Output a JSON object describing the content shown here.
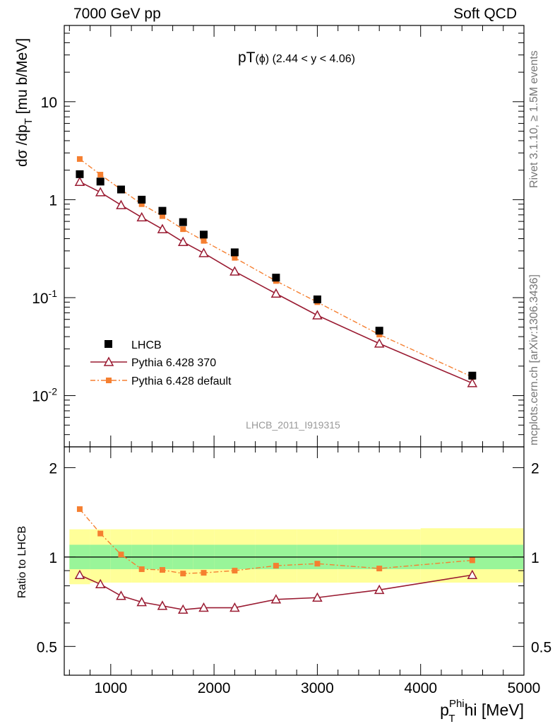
{
  "header": {
    "left": "7000 GeV pp",
    "right": "Soft QCD"
  },
  "side_labels": {
    "rivet": "Rivet 3.1.10, ≥ 1.5M events",
    "mcplots": "mcplots.cern.ch [arXiv:1306.3436]"
  },
  "chart_data": [
    {
      "type": "scatter",
      "panel": "main",
      "title_main": "pT",
      "title_particle": "(ϕ)",
      "title_range": "(2.44 < y < 4.06)",
      "watermark": "LHCB_2011_I919315",
      "ylabel": "dσ /dp_T [mu b/MeV]",
      "yscale": "log",
      "xlim": [
        550,
        5000
      ],
      "ylim": [
        0.003,
        60
      ],
      "y_tick_labels": [
        "10^-2",
        "10^-1",
        "1",
        "10"
      ],
      "legend_placement": "bottom-left",
      "x": [
        700,
        900,
        1100,
        1300,
        1500,
        1700,
        1900,
        2200,
        2600,
        3000,
        3600,
        4500
      ],
      "series": [
        {
          "name": "LHCB",
          "color": "#000000",
          "marker": "square",
          "values": [
            1.82,
            1.53,
            1.27,
            1.0,
            0.77,
            0.59,
            0.44,
            0.29,
            0.16,
            0.096,
            0.046,
            0.016
          ]
        },
        {
          "name": "Pythia 6.428 370",
          "color": "#9a1b32",
          "marker": "open-triangle",
          "line": "solid",
          "values": [
            1.52,
            1.19,
            0.88,
            0.66,
            0.5,
            0.37,
            0.285,
            0.185,
            0.11,
            0.066,
            0.034,
            0.0134
          ]
        },
        {
          "name": "Pythia 6.428 default",
          "color": "#f57f30",
          "marker": "square",
          "line": "dash-dot",
          "values": [
            2.6,
            1.8,
            1.27,
            0.9,
            0.68,
            0.5,
            0.38,
            0.255,
            0.148,
            0.09,
            0.042,
            0.0155
          ]
        }
      ]
    },
    {
      "type": "line",
      "panel": "ratio",
      "ylabel": "Ratio to LHCB",
      "xlabel_main": "p",
      "xlabel_sub": "T",
      "xlabel_sup": "Phi",
      "xlabel_unit": "hi [MeV]",
      "yscale": "log",
      "xlim": [
        550,
        5000
      ],
      "ylim": [
        0.4,
        2.35
      ],
      "x_tick_labels": [
        "1000",
        "2000",
        "3000",
        "4000",
        "5000"
      ],
      "y_tick_labels": [
        "0.5",
        "1",
        "2"
      ],
      "x": [
        700,
        900,
        1100,
        1300,
        1500,
        1700,
        1900,
        2200,
        2600,
        3000,
        3600,
        4500
      ],
      "bands": {
        "bin_edges": [
          600,
          800,
          1000,
          1200,
          1400,
          1600,
          1800,
          2000,
          2400,
          2800,
          3200,
          4000,
          5000
        ],
        "inner_low": [
          0.91,
          0.91,
          0.91,
          0.91,
          0.91,
          0.91,
          0.91,
          0.91,
          0.91,
          0.91,
          0.91,
          0.91
        ],
        "inner_high": [
          1.1,
          1.1,
          1.1,
          1.1,
          1.1,
          1.1,
          1.1,
          1.1,
          1.1,
          1.1,
          1.1,
          1.1
        ],
        "outer_low": [
          0.81,
          0.82,
          0.82,
          0.82,
          0.82,
          0.82,
          0.82,
          0.82,
          0.82,
          0.82,
          0.82,
          0.82
        ],
        "outer_high": [
          1.24,
          1.24,
          1.24,
          1.24,
          1.24,
          1.24,
          1.24,
          1.24,
          1.24,
          1.24,
          1.24,
          1.25
        ],
        "inner_color": "#99f599",
        "outer_color": "#ffff99"
      },
      "series": [
        {
          "name": "Pythia 6.428 370",
          "color": "#9a1b32",
          "values": [
            0.87,
            0.81,
            0.74,
            0.705,
            0.685,
            0.665,
            0.675,
            0.675,
            0.72,
            0.73,
            0.775,
            0.87
          ]
        },
        {
          "name": "Pythia 6.428 default",
          "color": "#f57f30",
          "values": [
            1.45,
            1.2,
            1.02,
            0.91,
            0.905,
            0.88,
            0.885,
            0.9,
            0.935,
            0.95,
            0.915,
            0.975
          ]
        }
      ]
    }
  ]
}
